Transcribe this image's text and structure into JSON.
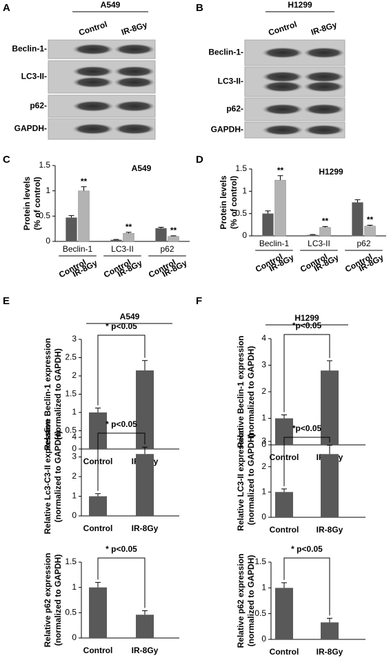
{
  "blots": [
    {
      "label": "A",
      "title": "A549",
      "lanes": [
        "Control",
        "IR-8Gy"
      ],
      "rows": [
        "Beclin-1-",
        "LC3-II-",
        "p62-",
        "GAPDH-"
      ]
    },
    {
      "label": "B",
      "title": "H1299",
      "lanes": [
        "Control",
        "IR-8Gy"
      ],
      "rows": [
        "Beclin-1-",
        "LC3-II-",
        "p62-",
        "GAPDH-"
      ]
    }
  ],
  "chart_data": [
    {
      "type": "grouped_bar",
      "label": "C",
      "title": "A549",
      "y_label": [
        "Protein levels",
        "(% of control)"
      ],
      "categories": [
        "Beclin-1",
        "LC3-II",
        "p62"
      ],
      "series": [
        {
          "name": "Control",
          "color": "#595959",
          "values": [
            0.47,
            0.03,
            0.26
          ],
          "errors": [
            0.04,
            0.01,
            0.02
          ]
        },
        {
          "name": "IR-8Gy",
          "color": "#b3b3b3",
          "values": [
            1.0,
            0.16,
            0.1
          ],
          "errors": [
            0.08,
            0.02,
            0.01
          ],
          "annotations": [
            "**",
            "**",
            "**"
          ]
        }
      ],
      "ylim": [
        0,
        1.5
      ],
      "yticks": [
        0,
        0.5,
        1,
        1.5
      ]
    },
    {
      "type": "grouped_bar",
      "label": "D",
      "title": "H1299",
      "y_label": [
        "Protein levels",
        "(% of control)"
      ],
      "categories": [
        "Beclin-1",
        "LC3-II",
        "p62"
      ],
      "series": [
        {
          "name": "Control",
          "color": "#595959",
          "values": [
            0.5,
            0.02,
            0.75
          ],
          "errors": [
            0.06,
            0.01,
            0.06
          ]
        },
        {
          "name": "IR-8Gy",
          "color": "#b3b3b3",
          "values": [
            1.25,
            0.19,
            0.22
          ],
          "errors": [
            0.1,
            0.02,
            0.02
          ],
          "annotations": [
            "**",
            "**",
            "**"
          ]
        }
      ],
      "ylim": [
        0,
        1.5
      ],
      "yticks": [
        0,
        0.5,
        1,
        1.5
      ]
    },
    {
      "type": "bar",
      "label": "E",
      "title": "A549",
      "annotation": "* p<0.05",
      "y_label": [
        "Relative Beclin-1 expression",
        "(normalized to GAPDH)"
      ],
      "categories": [
        "Control",
        "IR-8Gy"
      ],
      "values": [
        1,
        2.15
      ],
      "errors": [
        0.12,
        0.27
      ],
      "color": "#595959",
      "ylim": [
        0,
        3
      ],
      "yticks": [
        0,
        0.5,
        1,
        1.5,
        2,
        2.5,
        3
      ]
    },
    {
      "type": "bar",
      "annotation": "* p<0.05",
      "y_label": [
        "Relative Lc3-C3-II expression",
        "(normalized to GAPDH)"
      ],
      "categories": [
        "Control",
        "IR-8Gy"
      ],
      "values": [
        1,
        3.15
      ],
      "errors": [
        0.13,
        0.35
      ],
      "color": "#595959",
      "ylim": [
        0,
        4
      ],
      "yticks": [
        0,
        1,
        2,
        3,
        4
      ]
    },
    {
      "type": "bar",
      "annotation": "* p<0.05",
      "y_label": [
        "Relative p62  expression",
        "(normalized to GAPDH)"
      ],
      "categories": [
        "Control",
        "IR-8Gy"
      ],
      "values": [
        1,
        0.46
      ],
      "errors": [
        0.1,
        0.08
      ],
      "color": "#595959",
      "ylim": [
        0,
        1.5
      ],
      "yticks": [
        0,
        0.5,
        1,
        1.5
      ]
    },
    {
      "type": "bar",
      "label": "F",
      "title": "H1299",
      "annotation": "*p<0.05",
      "y_label": [
        "Relative Beclin-1 expression",
        "(normalized to GAPDH)"
      ],
      "categories": [
        "Control",
        "IR-8Gy"
      ],
      "values": [
        1,
        2.8
      ],
      "errors": [
        0.13,
        0.37
      ],
      "color": "#595959",
      "ylim": [
        0,
        4
      ],
      "yticks": [
        0,
        1,
        2,
        3,
        4
      ]
    },
    {
      "type": "bar",
      "annotation": "*p<0.05",
      "y_label": [
        "Relative LC3-II expression",
        "(normalized to GAPDH)"
      ],
      "categories": [
        "Control",
        "IR-8Gy"
      ],
      "values": [
        1,
        2.5
      ],
      "errors": [
        0.12,
        0.35
      ],
      "color": "#595959",
      "ylim": [
        0,
        3
      ],
      "yticks": [
        0,
        1,
        2,
        3
      ]
    },
    {
      "type": "bar",
      "annotation": "* p<0.05",
      "y_label": [
        "Relative p62  expression",
        "(normalized to GAPDH)"
      ],
      "categories": [
        "Control",
        "IR-8Gy"
      ],
      "values": [
        1,
        0.33
      ],
      "errors": [
        0.1,
        0.08
      ],
      "color": "#595959",
      "ylim": [
        0,
        1.5
      ],
      "yticks": [
        0,
        0.5,
        1,
        1.5
      ]
    }
  ]
}
